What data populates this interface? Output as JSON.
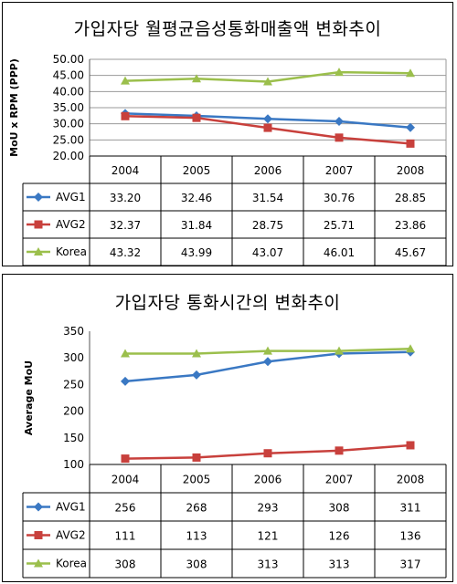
{
  "chart_data": [
    {
      "type": "line",
      "title": "가입자당 월평균음성통화매출액 변화추이",
      "ylabel": "MoU x RPM (PPP)",
      "ylim": [
        20,
        50
      ],
      "yticks": [
        "20.00",
        "25.00",
        "30.00",
        "35.00",
        "40.00",
        "45.00",
        "50.00"
      ],
      "grid": true,
      "categories": [
        "2004",
        "2005",
        "2006",
        "2007",
        "2008"
      ],
      "series": [
        {
          "name": "AVG1",
          "marker": "diamond",
          "color": "#3a78c3",
          "values": [
            33.2,
            32.46,
            31.54,
            30.76,
            28.85
          ],
          "labels": [
            "33.20",
            "32.46",
            "31.54",
            "30.76",
            "28.85"
          ]
        },
        {
          "name": "AVG2",
          "marker": "square",
          "color": "#c8403c",
          "values": [
            32.37,
            31.84,
            28.75,
            25.71,
            23.86
          ],
          "labels": [
            "32.37",
            "31.84",
            "28.75",
            "25.71",
            "23.86"
          ]
        },
        {
          "name": "Korea",
          "marker": "triangle",
          "color": "#9bbf4c",
          "values": [
            43.32,
            43.99,
            43.07,
            46.01,
            45.67
          ],
          "labels": [
            "43.32",
            "43.99",
            "43.07",
            "46.01",
            "45.67"
          ]
        }
      ]
    },
    {
      "type": "line",
      "title": "가입자당 통화시간의 변화추이",
      "ylabel": "Average MoU",
      "ylim": [
        100,
        350
      ],
      "yticks": [
        "100",
        "150",
        "200",
        "250",
        "300",
        "350"
      ],
      "grid": false,
      "categories": [
        "2004",
        "2005",
        "2006",
        "2007",
        "2008"
      ],
      "series": [
        {
          "name": "AVG1",
          "marker": "diamond",
          "color": "#3a78c3",
          "values": [
            256,
            268,
            293,
            308,
            311
          ],
          "labels": [
            "256",
            "268",
            "293",
            "308",
            "311"
          ]
        },
        {
          "name": "AVG2",
          "marker": "square",
          "color": "#c8403c",
          "values": [
            111,
            113,
            121,
            126,
            136
          ],
          "labels": [
            "111",
            "113",
            "121",
            "126",
            "136"
          ]
        },
        {
          "name": "Korea",
          "marker": "triangle",
          "color": "#9bbf4c",
          "values": [
            308,
            308,
            313,
            313,
            317
          ],
          "labels": [
            "308",
            "308",
            "313",
            "313",
            "317"
          ]
        }
      ]
    }
  ]
}
